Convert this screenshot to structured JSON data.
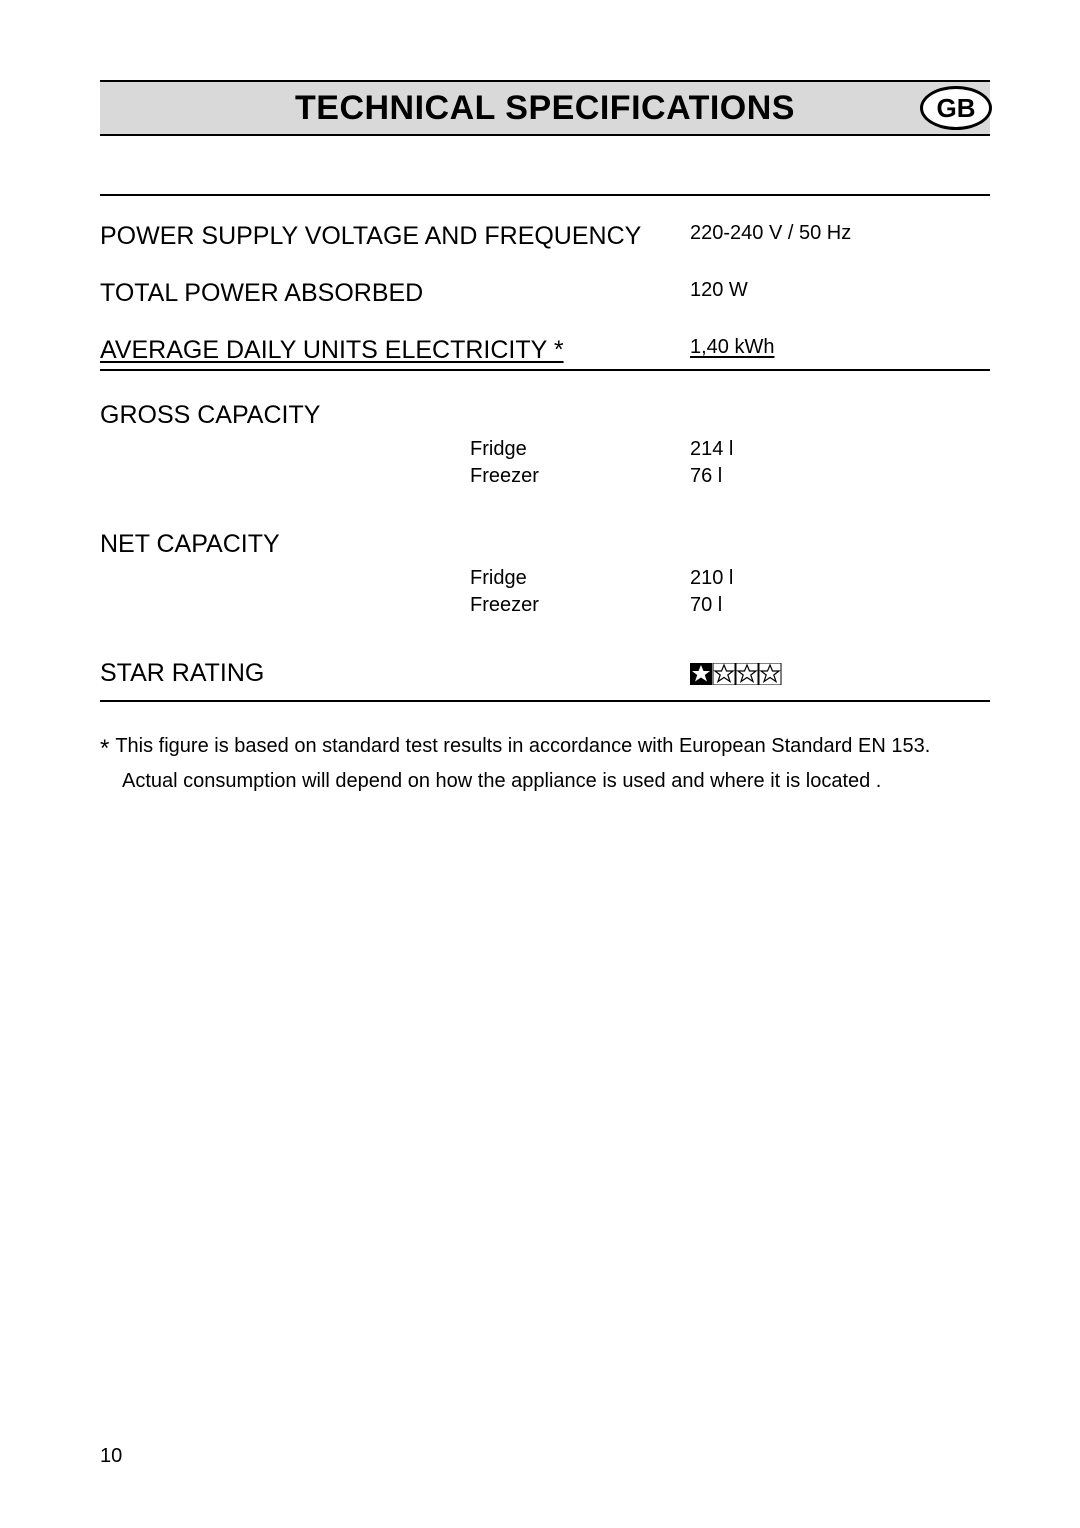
{
  "header": {
    "title": "TECHNICAL SPECIFICATIONS",
    "badge": "GB"
  },
  "specs": {
    "power_supply": {
      "label": "POWER SUPPLY VOLTAGE AND FREQUENCY",
      "value": "220-240 V / 50 Hz"
    },
    "total_power": {
      "label": "TOTAL POWER ABSORBED",
      "value": "120 W"
    },
    "avg_daily": {
      "label": "AVERAGE DAILY UNITS ELECTRICITY *",
      "value": "1,40 kWh"
    },
    "gross": {
      "label": "GROSS CAPACITY",
      "fridge_label": "Fridge",
      "fridge_value": "214 l",
      "freezer_label": "Freezer",
      "freezer_value": "76 l"
    },
    "net": {
      "label": "NET CAPACITY",
      "fridge_label": "Fridge",
      "fridge_value": "210 l",
      "freezer_label": "Freezer",
      "freezer_value": "70 l"
    },
    "star_rating": {
      "label": "STAR RATING",
      "count": 4,
      "star_fill": "#000000",
      "star_outline": "#000000"
    }
  },
  "footnote": {
    "line1": "This figure is based on standard test results in accordance with European Standard EN 153.",
    "line2": "Actual consumption will depend on how the appliance is used and where it is located ."
  },
  "page_number": "10"
}
